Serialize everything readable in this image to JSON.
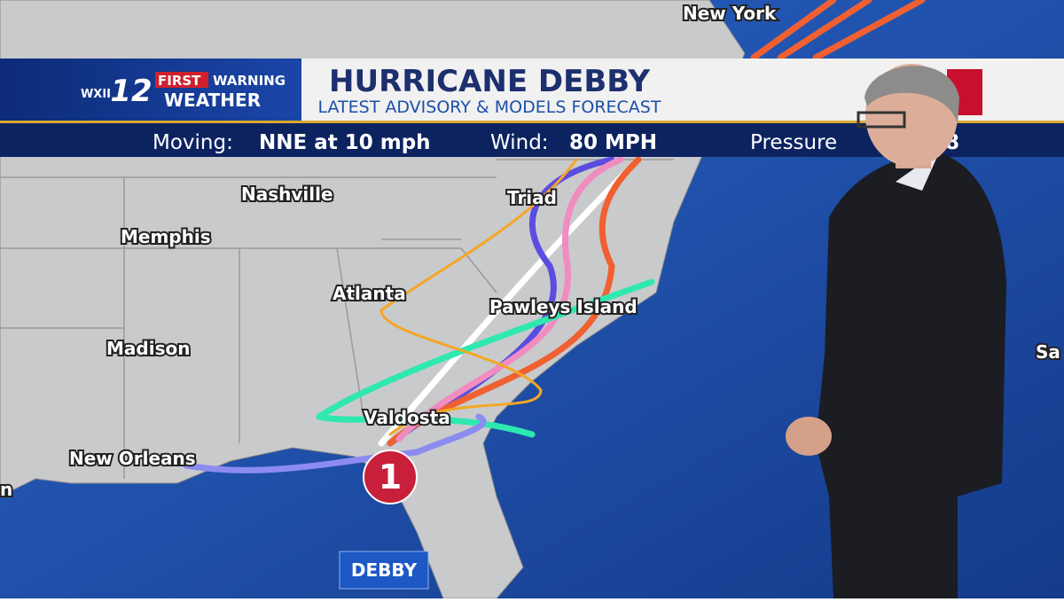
{
  "header": {
    "network": "WXII",
    "channel": "12",
    "brand_top_1": "FIRST",
    "brand_top_2": "WARNING",
    "brand_bottom": "WEATHER",
    "title": "HURRICANE DEBBY",
    "subtitle": "LATEST ADVISORY & MODELS FORECAST"
  },
  "ticker": {
    "moving_label": "Moving:",
    "moving_value": "NNE at 10 mph",
    "wind_label": "Wind:",
    "wind_value": "80 MPH",
    "pressure_label": "Pressure",
    "pressure_value": "8"
  },
  "map": {
    "cities": [
      "New York",
      "Nashville",
      "Triad",
      "Memphis",
      "Atlanta",
      "Pawleys Island",
      "Madison",
      "Valdosta",
      "New Orleans",
      "Sa",
      "n"
    ],
    "storm": {
      "name": "DEBBY",
      "category": "1"
    }
  }
}
